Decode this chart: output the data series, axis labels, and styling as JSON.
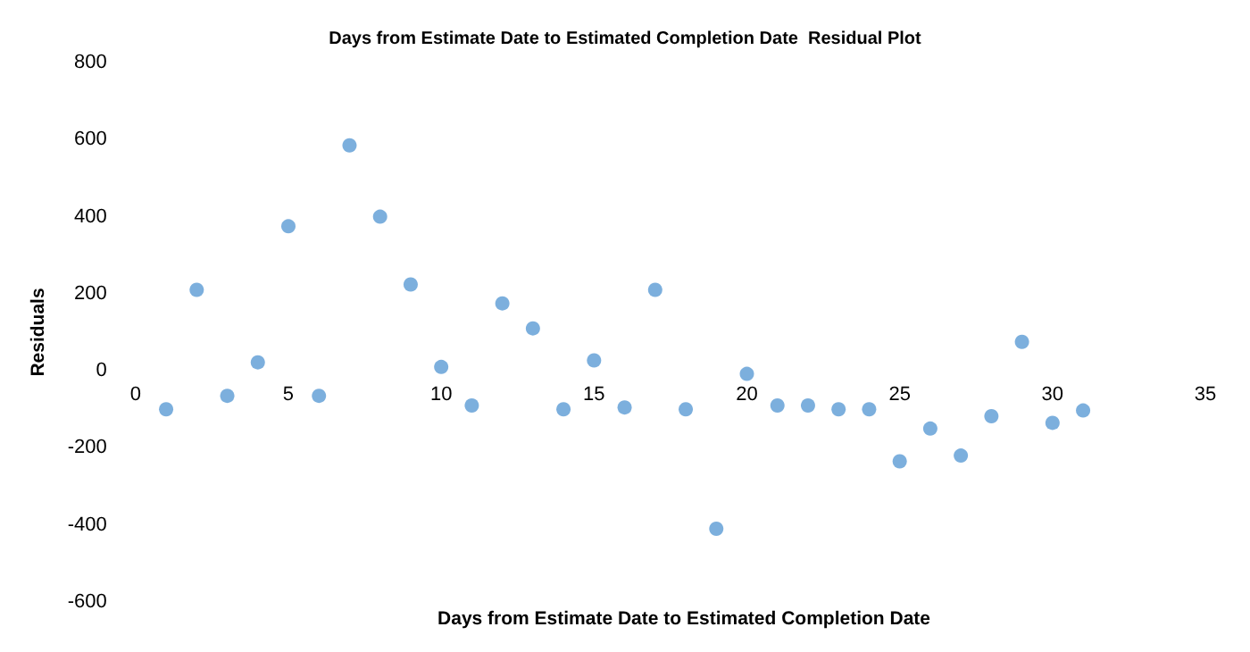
{
  "chart_data": {
    "type": "scatter",
    "title": "Days from Estimate Date to Estimated Completion Date  Residual Plot",
    "xlabel": "Days from Estimate Date to Estimated Completion Date",
    "ylabel": "Residuals",
    "x": [
      1,
      2,
      3,
      4,
      5,
      6,
      7,
      8,
      9,
      10,
      11,
      12,
      13,
      14,
      15,
      16,
      17,
      18,
      19,
      20,
      21,
      22,
      23,
      24,
      25,
      26,
      27,
      28,
      29,
      30,
      31
    ],
    "series": [
      {
        "color": "#5b9bd5",
        "values": [
          -100,
          210,
          -65,
          22,
          375,
          -65,
          585,
          400,
          224,
          10,
          -90,
          175,
          110,
          -100,
          27,
          -95,
          210,
          -100,
          -410,
          -8,
          -90,
          -90,
          -100,
          -100,
          -235,
          -150,
          -220,
          -118,
          75,
          -135,
          -103
        ]
      }
    ],
    "xlim": [
      0,
      35
    ],
    "xticks": [
      0,
      5,
      10,
      15,
      20,
      25,
      30,
      35
    ],
    "ylim": [
      -600,
      800
    ],
    "yticks": [
      -600,
      -400,
      -200,
      0,
      200,
      400,
      600,
      800
    ],
    "grid": false,
    "marker": "circle"
  }
}
